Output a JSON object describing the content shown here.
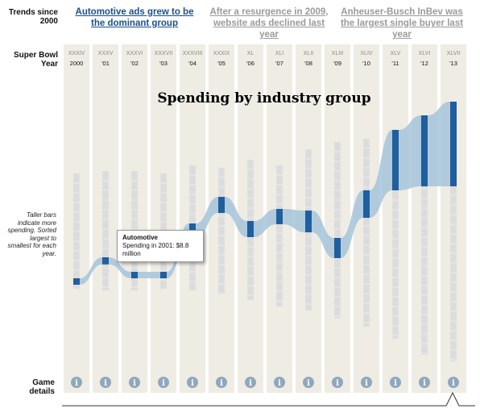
{
  "trends_label": "Trends since 2000",
  "tabs": [
    "Automotive ads grew to be the dominant group",
    "After a resurgence in 2009, website ads declined last year",
    "Anheuser-Busch InBev was the largest single buyer last year"
  ],
  "row_label": "Super Bowl Year",
  "chart_data": {
    "type": "bar",
    "title": "Spending by industry group",
    "roman": [
      "XXXIV",
      "XXXV",
      "XXXVI",
      "XXXVII",
      "XXXVIII",
      "XXXIX",
      "XL",
      "XLI",
      "XLII",
      "XLIII",
      "XLIV",
      "XLV",
      "XLVI",
      "XLVII"
    ],
    "categories": [
      "2000",
      "'01",
      "'02",
      "'03",
      "'04",
      "'05",
      "'06",
      "'07",
      "'08",
      "'09",
      "'10",
      "'11",
      "'12",
      "'13"
    ],
    "series": [
      {
        "name": "Automotive",
        "color": "#1f5f9e",
        "values": [
          8,
          8.8,
          8,
          8,
          20,
          20,
          20,
          19,
          27,
          25,
          34,
          75,
          88,
          105
        ]
      }
    ]
  },
  "note": "Taller bars indicate more spending. Sorted largest to smallest for each year.",
  "tooltip": {
    "title": "Automotive",
    "text": "Spending in 2001: $8.8 million"
  },
  "game_details": "Game details",
  "info_icon": "i"
}
